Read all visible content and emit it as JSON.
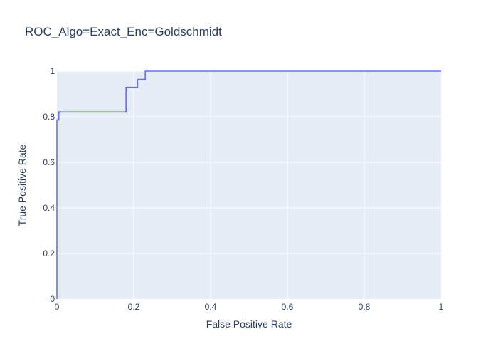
{
  "chart_data": {
    "type": "line",
    "title": "ROC_Algo=Exact_Enc=Goldschmidt",
    "xlabel": "False Positive Rate",
    "ylabel": "True Positive Rate",
    "xlim": [
      0,
      1
    ],
    "ylim": [
      0,
      1
    ],
    "xticks": [
      0,
      0.2,
      0.4,
      0.6,
      0.8,
      1
    ],
    "yticks": [
      0,
      0.2,
      0.4,
      0.6,
      0.8,
      1
    ],
    "xtick_labels": [
      "0",
      "0.2",
      "0.4",
      "0.6",
      "0.8",
      "1"
    ],
    "ytick_labels": [
      "0",
      "0.2",
      "0.4",
      "0.6",
      "0.8",
      "1"
    ],
    "grid": true,
    "legend": "none",
    "colors": {
      "plot_bg": "#e5ecf6",
      "grid": "#ffffff",
      "line": "#636efa",
      "text": "#2a3f5f"
    },
    "series": [
      {
        "x": [
          0,
          0,
          0.005,
          0.005,
          0.18,
          0.18,
          0.21,
          0.21,
          0.23,
          0.23,
          1
        ],
        "y": [
          0,
          0.786,
          0.786,
          0.821,
          0.821,
          0.929,
          0.929,
          0.964,
          0.964,
          1,
          1
        ]
      }
    ]
  }
}
